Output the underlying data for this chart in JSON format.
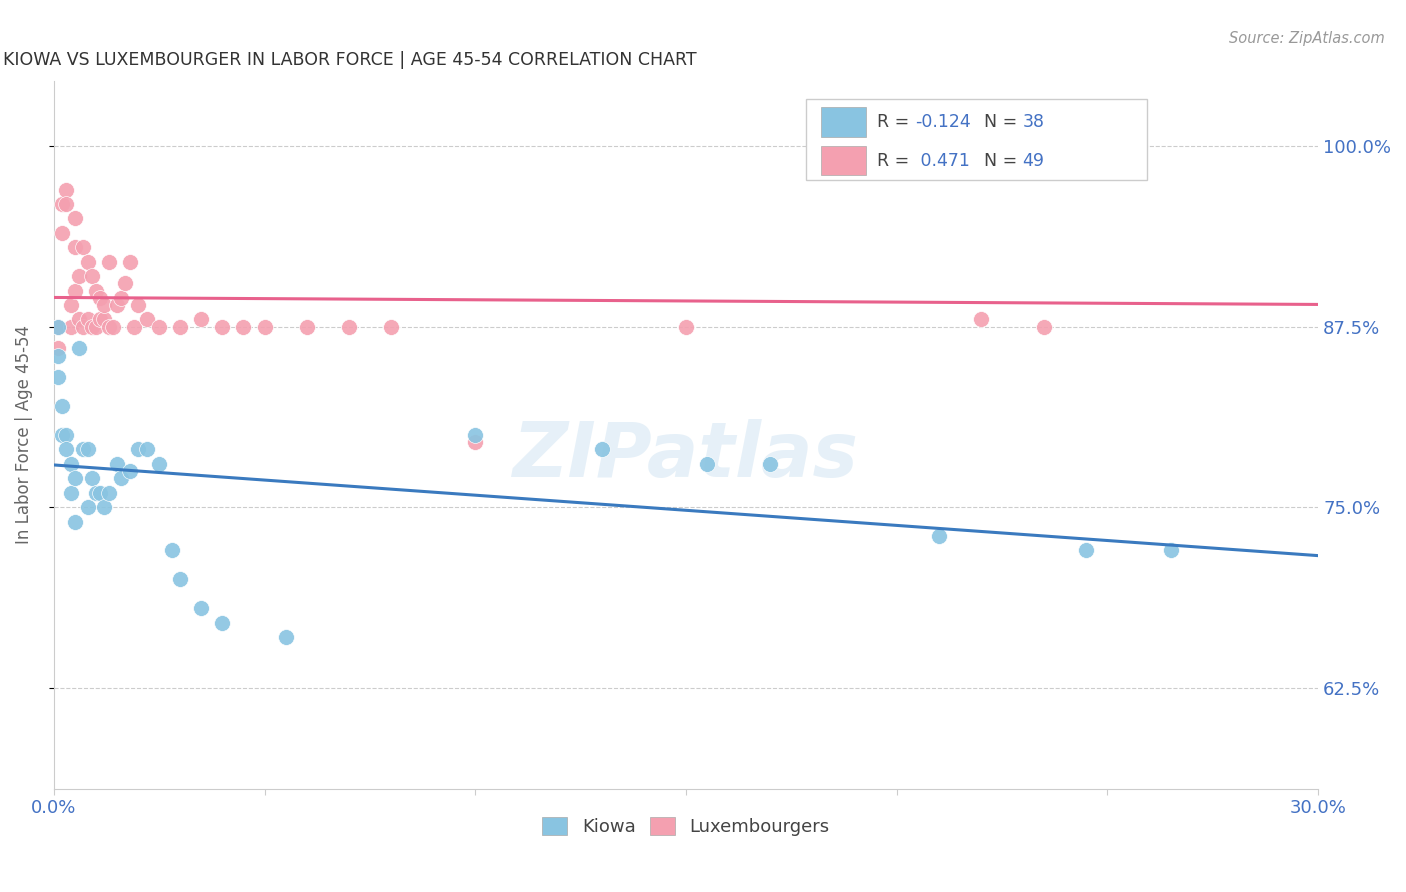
{
  "title": "KIOWA VS LUXEMBOURGER IN LABOR FORCE | AGE 45-54 CORRELATION CHART",
  "source": "Source: ZipAtlas.com",
  "ylabel": "In Labor Force | Age 45-54",
  "xlim": [
    0.0,
    0.3
  ],
  "ylim": [
    0.555,
    1.045
  ],
  "yticks": [
    0.625,
    0.75,
    0.875,
    1.0
  ],
  "ytick_labels": [
    "62.5%",
    "75.0%",
    "87.5%",
    "100.0%"
  ],
  "xticks": [
    0.0,
    0.05,
    0.1,
    0.15,
    0.2,
    0.25,
    0.3
  ],
  "xtick_labels": [
    "0.0%",
    "",
    "",
    "",
    "",
    "",
    "30.0%"
  ],
  "kiowa_color": "#89c4e1",
  "luxembourger_color": "#f4a0b0",
  "kiowa_R": -0.124,
  "kiowa_N": 38,
  "luxembourger_R": 0.471,
  "luxembourger_N": 49,
  "bottom_legend_kiowa": "Kiowa",
  "bottom_legend_luxembourger": "Luxembourgers",
  "kiowa_x": [
    0.001,
    0.001,
    0.001,
    0.002,
    0.002,
    0.003,
    0.003,
    0.004,
    0.004,
    0.005,
    0.005,
    0.006,
    0.007,
    0.008,
    0.008,
    0.009,
    0.01,
    0.011,
    0.012,
    0.013,
    0.015,
    0.016,
    0.018,
    0.02,
    0.022,
    0.025,
    0.028,
    0.03,
    0.035,
    0.04,
    0.055,
    0.1,
    0.13,
    0.155,
    0.17,
    0.21,
    0.245,
    0.265
  ],
  "kiowa_y": [
    0.875,
    0.855,
    0.84,
    0.82,
    0.8,
    0.8,
    0.79,
    0.78,
    0.76,
    0.77,
    0.74,
    0.86,
    0.79,
    0.79,
    0.75,
    0.77,
    0.76,
    0.76,
    0.75,
    0.76,
    0.78,
    0.77,
    0.775,
    0.79,
    0.79,
    0.78,
    0.72,
    0.7,
    0.68,
    0.67,
    0.66,
    0.8,
    0.79,
    0.78,
    0.78,
    0.73,
    0.72,
    0.72
  ],
  "luxembourger_x": [
    0.001,
    0.001,
    0.002,
    0.002,
    0.003,
    0.003,
    0.004,
    0.004,
    0.005,
    0.005,
    0.005,
    0.006,
    0.006,
    0.007,
    0.007,
    0.008,
    0.008,
    0.009,
    0.009,
    0.01,
    0.01,
    0.011,
    0.011,
    0.012,
    0.012,
    0.013,
    0.013,
    0.014,
    0.015,
    0.016,
    0.017,
    0.018,
    0.019,
    0.02,
    0.022,
    0.025,
    0.03,
    0.035,
    0.04,
    0.045,
    0.05,
    0.06,
    0.07,
    0.08,
    0.1,
    0.15,
    0.22,
    0.235,
    0.25
  ],
  "luxembourger_y": [
    0.875,
    0.86,
    0.96,
    0.94,
    0.97,
    0.96,
    0.89,
    0.875,
    0.95,
    0.93,
    0.9,
    0.91,
    0.88,
    0.93,
    0.875,
    0.92,
    0.88,
    0.91,
    0.875,
    0.9,
    0.875,
    0.895,
    0.88,
    0.88,
    0.89,
    0.92,
    0.875,
    0.875,
    0.89,
    0.895,
    0.905,
    0.92,
    0.875,
    0.89,
    0.88,
    0.875,
    0.875,
    0.88,
    0.875,
    0.875,
    0.875,
    0.875,
    0.875,
    0.875,
    0.795,
    0.875,
    0.88,
    0.875,
    1.0
  ]
}
